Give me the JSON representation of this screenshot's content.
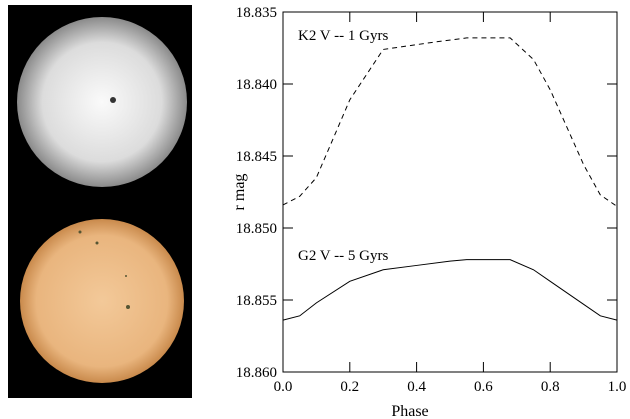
{
  "chart_data": {
    "type": "line",
    "xlabel": "Phase",
    "ylabel": "r mag",
    "xlim": [
      0,
      1
    ],
    "ylim": [
      18.86,
      18.835
    ],
    "xticks": [
      {
        "value": 0,
        "label": "0.0"
      },
      {
        "value": 0.2,
        "label": "0.2"
      },
      {
        "value": 0.4,
        "label": "0.4"
      },
      {
        "value": 0.6,
        "label": "0.6"
      },
      {
        "value": 0.8,
        "label": "0.8"
      },
      {
        "value": 1,
        "label": "1.0"
      }
    ],
    "yticks": [
      18.835,
      {
        "value": 18.84,
        "label": "18.840"
      },
      18.845,
      {
        "value": 18.85,
        "label": "18.850"
      },
      18.855,
      {
        "value": 18.86,
        "label": "18.860"
      }
    ],
    "series": [
      {
        "name": "K2 V -- 1 Gyrs",
        "color": "#000000",
        "dash": true,
        "x": [
          0,
          0.05,
          0.1,
          0.2,
          0.3,
          0.45,
          0.55,
          0.68,
          0.75,
          0.8,
          0.9,
          0.95,
          1.0
        ],
        "values": [
          18.8484,
          18.8478,
          18.8465,
          18.8411,
          18.8376,
          18.8371,
          18.8368,
          18.8368,
          18.8383,
          18.8404,
          18.8456,
          18.8477,
          18.8485
        ]
      },
      {
        "name": "G2 V -- 5 Gyrs",
        "color": "#000000",
        "dash": false,
        "x": [
          0,
          0.05,
          0.1,
          0.2,
          0.3,
          0.4,
          0.5,
          0.55,
          0.68,
          0.75,
          0.8,
          0.9,
          0.95,
          1.0
        ],
        "values": [
          18.8564,
          18.8561,
          18.8552,
          18.8537,
          18.8529,
          18.8526,
          18.8523,
          18.8522,
          18.8522,
          18.8529,
          18.8537,
          18.8553,
          18.8561,
          18.8564
        ]
      }
    ]
  }
}
